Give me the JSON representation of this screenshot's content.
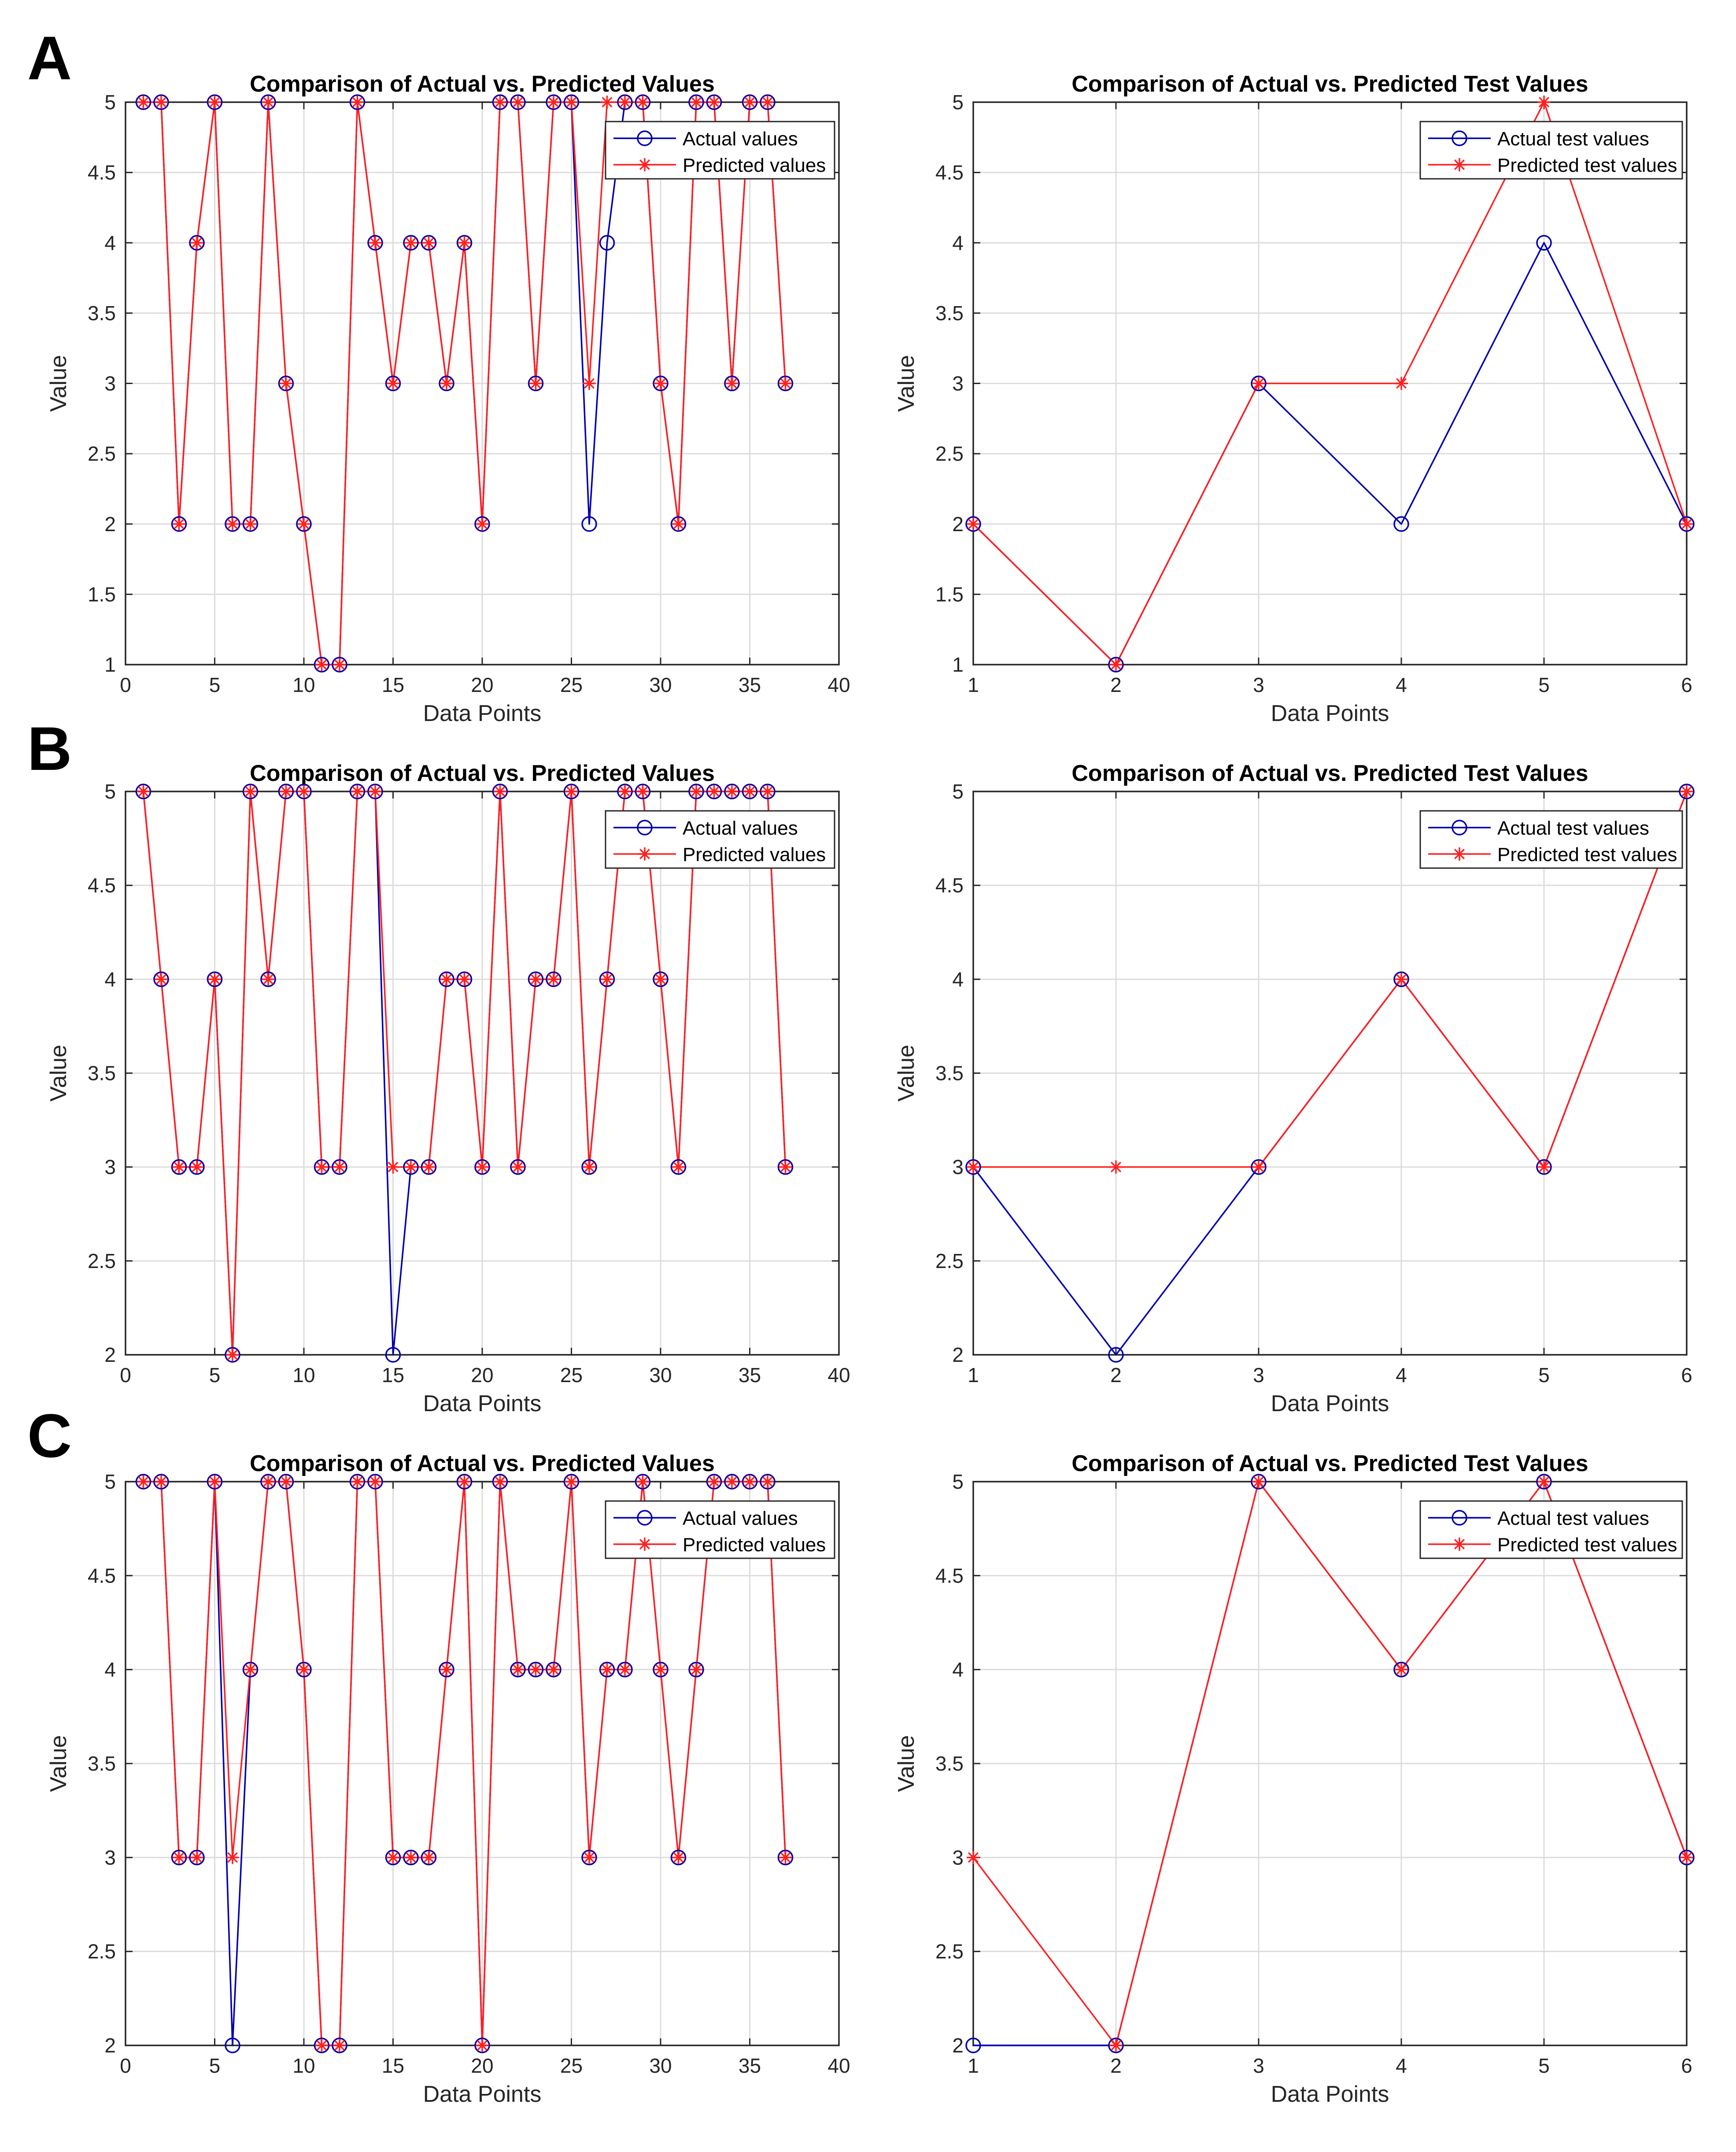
{
  "panels": [
    {
      "label": "A"
    },
    {
      "label": "B"
    },
    {
      "label": "C"
    }
  ],
  "colors": {
    "actual": "#0000b0",
    "predicted": "#ff2020",
    "grid": "#dcdcdc",
    "axis": "#262626"
  },
  "chart_data": [
    {
      "type": "line",
      "panel": "A",
      "title": "Comparison of Actual vs. Predicted Values",
      "xlabel": "Data Points",
      "ylabel": "Value",
      "xlim": [
        0,
        40
      ],
      "ylim": [
        1,
        5
      ],
      "xticks": [
        0,
        5,
        10,
        15,
        20,
        25,
        30,
        35,
        40
      ],
      "yticks": [
        1,
        1.5,
        2,
        2.5,
        3,
        3.5,
        4,
        4.5,
        5
      ],
      "grid": true,
      "legend_position": "top-right",
      "x": [
        1,
        2,
        3,
        4,
        5,
        6,
        7,
        8,
        9,
        10,
        11,
        12,
        13,
        14,
        15,
        16,
        17,
        18,
        19,
        20,
        21,
        22,
        23,
        24,
        25,
        26,
        27,
        28,
        29,
        30,
        31,
        32,
        33,
        34,
        35,
        36,
        37
      ],
      "series": [
        {
          "name": "Actual values",
          "marker": "circle",
          "color": "#0000b0",
          "values": [
            5,
            5,
            2,
            4,
            5,
            2,
            2,
            5,
            3,
            2,
            1,
            1,
            5,
            4,
            3,
            4,
            4,
            3,
            4,
            2,
            5,
            5,
            3,
            5,
            5,
            2,
            4,
            5,
            5,
            3,
            2,
            5,
            5,
            3,
            5,
            5,
            3
          ]
        },
        {
          "name": "Predicted values",
          "marker": "star",
          "color": "#ff2020",
          "values": [
            5,
            5,
            2,
            4,
            5,
            2,
            2,
            5,
            3,
            2,
            1,
            1,
            5,
            4,
            3,
            4,
            4,
            3,
            4,
            2,
            5,
            5,
            3,
            5,
            5,
            3,
            5,
            5,
            5,
            3,
            2,
            5,
            5,
            3,
            5,
            5,
            3
          ]
        }
      ]
    },
    {
      "type": "line",
      "panel": "A",
      "title": "Comparison of Actual vs. Predicted Test Values",
      "xlabel": "Data Points",
      "ylabel": "Value",
      "xlim": [
        1,
        6
      ],
      "ylim": [
        1,
        5
      ],
      "xticks": [
        1,
        2,
        3,
        4,
        5,
        6
      ],
      "yticks": [
        1,
        1.5,
        2,
        2.5,
        3,
        3.5,
        4,
        4.5,
        5
      ],
      "grid": true,
      "legend_position": "top-right",
      "x": [
        1,
        2,
        3,
        4,
        5,
        6
      ],
      "series": [
        {
          "name": "Actual test values",
          "marker": "circle",
          "color": "#0000b0",
          "values": [
            2,
            1,
            3,
            2,
            4,
            2
          ]
        },
        {
          "name": "Predicted test values",
          "marker": "star",
          "color": "#ff2020",
          "values": [
            2,
            1,
            3,
            3,
            5,
            2
          ]
        }
      ]
    },
    {
      "type": "line",
      "panel": "B",
      "title": "Comparison of Actual vs. Predicted Values",
      "xlabel": "Data Points",
      "ylabel": "Value",
      "xlim": [
        0,
        40
      ],
      "ylim": [
        2,
        5
      ],
      "xticks": [
        0,
        5,
        10,
        15,
        20,
        25,
        30,
        35,
        40
      ],
      "yticks": [
        2,
        2.5,
        3,
        3.5,
        4,
        4.5,
        5
      ],
      "grid": true,
      "legend_position": "top-right",
      "x": [
        1,
        2,
        3,
        4,
        5,
        6,
        7,
        8,
        9,
        10,
        11,
        12,
        13,
        14,
        15,
        16,
        17,
        18,
        19,
        20,
        21,
        22,
        23,
        24,
        25,
        26,
        27,
        28,
        29,
        30,
        31,
        32,
        33,
        34,
        35,
        36,
        37
      ],
      "series": [
        {
          "name": "Actual values",
          "marker": "circle",
          "color": "#0000b0",
          "values": [
            5,
            4,
            3,
            3,
            4,
            2,
            5,
            4,
            5,
            5,
            3,
            3,
            5,
            5,
            2,
            3,
            3,
            4,
            4,
            3,
            5,
            3,
            4,
            4,
            5,
            3,
            4,
            5,
            5,
            4,
            3,
            5,
            5,
            5,
            5,
            5,
            3
          ]
        },
        {
          "name": "Predicted values",
          "marker": "star",
          "color": "#ff2020",
          "values": [
            5,
            4,
            3,
            3,
            4,
            2,
            5,
            4,
            5,
            5,
            3,
            3,
            5,
            5,
            3,
            3,
            3,
            4,
            4,
            3,
            5,
            3,
            4,
            4,
            5,
            3,
            4,
            5,
            5,
            4,
            3,
            5,
            5,
            5,
            5,
            5,
            3
          ]
        }
      ]
    },
    {
      "type": "line",
      "panel": "B",
      "title": "Comparison of Actual vs. Predicted Test Values",
      "xlabel": "Data Points",
      "ylabel": "Value",
      "xlim": [
        1,
        6
      ],
      "ylim": [
        2,
        5
      ],
      "xticks": [
        1,
        2,
        3,
        4,
        5,
        6
      ],
      "yticks": [
        2,
        2.5,
        3,
        3.5,
        4,
        4.5,
        5
      ],
      "grid": true,
      "legend_position": "top-right",
      "x": [
        1,
        2,
        3,
        4,
        5,
        6
      ],
      "series": [
        {
          "name": "Actual test values",
          "marker": "circle",
          "color": "#0000b0",
          "values": [
            3,
            2,
            3,
            4,
            3,
            5
          ]
        },
        {
          "name": "Predicted test values",
          "marker": "star",
          "color": "#ff2020",
          "values": [
            3,
            3,
            3,
            4,
            3,
            5
          ]
        }
      ]
    },
    {
      "type": "line",
      "panel": "C",
      "title": "Comparison of Actual vs. Predicted Values",
      "xlabel": "Data Points",
      "ylabel": "Value",
      "xlim": [
        0,
        40
      ],
      "ylim": [
        2,
        5
      ],
      "xticks": [
        0,
        5,
        10,
        15,
        20,
        25,
        30,
        35,
        40
      ],
      "yticks": [
        2,
        2.5,
        3,
        3.5,
        4,
        4.5,
        5
      ],
      "grid": true,
      "legend_position": "top-right",
      "x": [
        1,
        2,
        3,
        4,
        5,
        6,
        7,
        8,
        9,
        10,
        11,
        12,
        13,
        14,
        15,
        16,
        17,
        18,
        19,
        20,
        21,
        22,
        23,
        24,
        25,
        26,
        27,
        28,
        29,
        30,
        31,
        32,
        33,
        34,
        35,
        36,
        37
      ],
      "series": [
        {
          "name": "Actual values",
          "marker": "circle",
          "color": "#0000b0",
          "values": [
            5,
            5,
            3,
            3,
            5,
            2,
            4,
            5,
            5,
            4,
            2,
            2,
            5,
            5,
            3,
            3,
            3,
            4,
            5,
            2,
            5,
            4,
            4,
            4,
            5,
            3,
            4,
            4,
            5,
            4,
            3,
            4,
            5,
            5,
            5,
            5,
            3
          ]
        },
        {
          "name": "Predicted values",
          "marker": "star",
          "color": "#ff2020",
          "values": [
            5,
            5,
            3,
            3,
            5,
            3,
            4,
            5,
            5,
            4,
            2,
            2,
            5,
            5,
            3,
            3,
            3,
            4,
            5,
            2,
            5,
            4,
            4,
            4,
            5,
            3,
            4,
            4,
            5,
            4,
            3,
            4,
            5,
            5,
            5,
            5,
            3
          ]
        }
      ]
    },
    {
      "type": "line",
      "panel": "C",
      "title": "Comparison of Actual vs. Predicted Test Values",
      "xlabel": "Data Points",
      "ylabel": "Value",
      "xlim": [
        1,
        6
      ],
      "ylim": [
        2,
        5
      ],
      "xticks": [
        1,
        2,
        3,
        4,
        5,
        6
      ],
      "yticks": [
        2,
        2.5,
        3,
        3.5,
        4,
        4.5,
        5
      ],
      "grid": true,
      "legend_position": "top-right",
      "x": [
        1,
        2,
        3,
        4,
        5,
        6
      ],
      "series": [
        {
          "name": "Actual test values",
          "marker": "circle",
          "color": "#0000b0",
          "values": [
            2,
            2,
            5,
            4,
            5,
            3
          ]
        },
        {
          "name": "Predicted test values",
          "marker": "star",
          "color": "#ff2020",
          "values": [
            3,
            2,
            5,
            4,
            5,
            3
          ]
        }
      ]
    }
  ]
}
